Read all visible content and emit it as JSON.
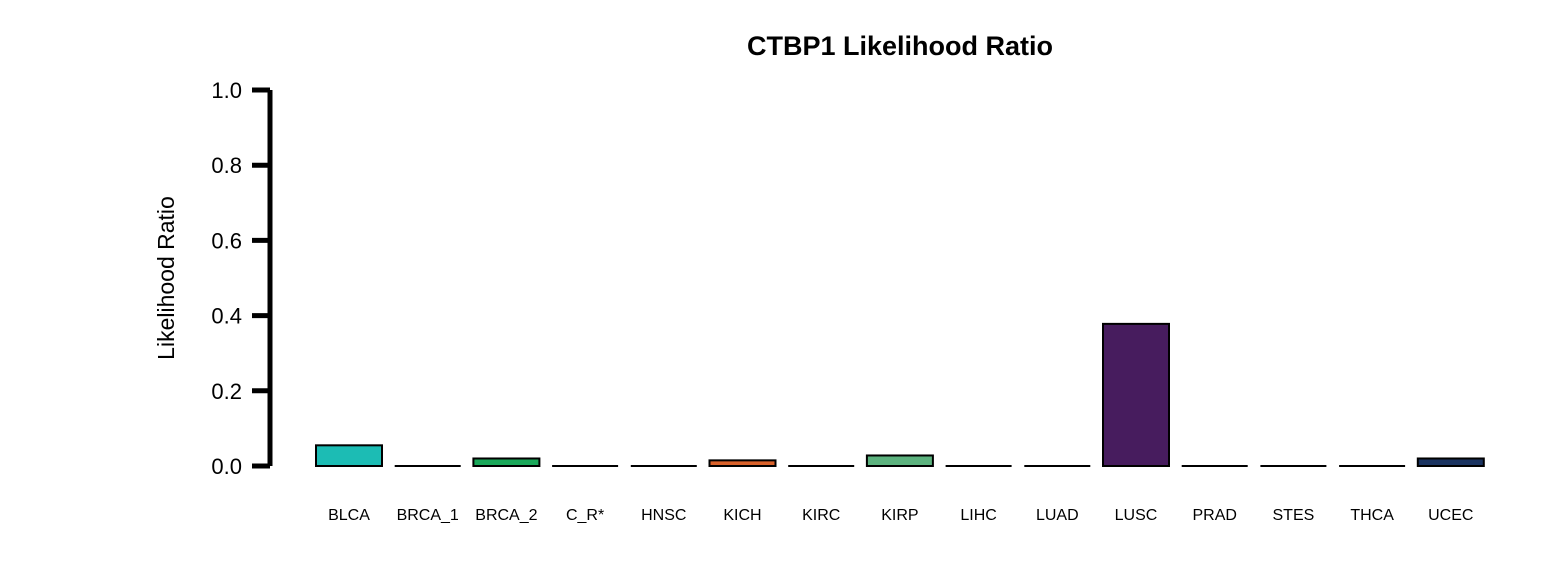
{
  "chart_data": {
    "type": "bar",
    "title": "CTBP1 Likelihood Ratio",
    "xlabel": "",
    "ylabel": "Likelihood Ratio",
    "ylim": [
      0,
      1.0
    ],
    "yticks": [
      "0.0",
      "0.2",
      "0.4",
      "0.6",
      "0.8",
      "1.0"
    ],
    "ytick_values": [
      0,
      0.2,
      0.4,
      0.6,
      0.8,
      1.0
    ],
    "categories": [
      "BLCA",
      "BRCA_1",
      "BRCA_2",
      "C_R*",
      "HNSC",
      "KICH",
      "KIRC",
      "KIRP",
      "LIHC",
      "LUAD",
      "LUSC",
      "PRAD",
      "STES",
      "THCA",
      "UCEC"
    ],
    "values": [
      0.055,
      0.0,
      0.02,
      0.0,
      0.0,
      0.015,
      0.0,
      0.028,
      0.0,
      0.0,
      0.378,
      0.0,
      0.0,
      0.003,
      0.02
    ],
    "colors": [
      "#1cbcb4",
      "#000000",
      "#1aa85a",
      "#000000",
      "#000000",
      "#d9622b",
      "#000000",
      "#5cb27e",
      "#000000",
      "#000000",
      "#471c5e",
      "#000000",
      "#000000",
      "#000000",
      "#1a3360"
    ],
    "grid": false,
    "legend": "none"
  }
}
